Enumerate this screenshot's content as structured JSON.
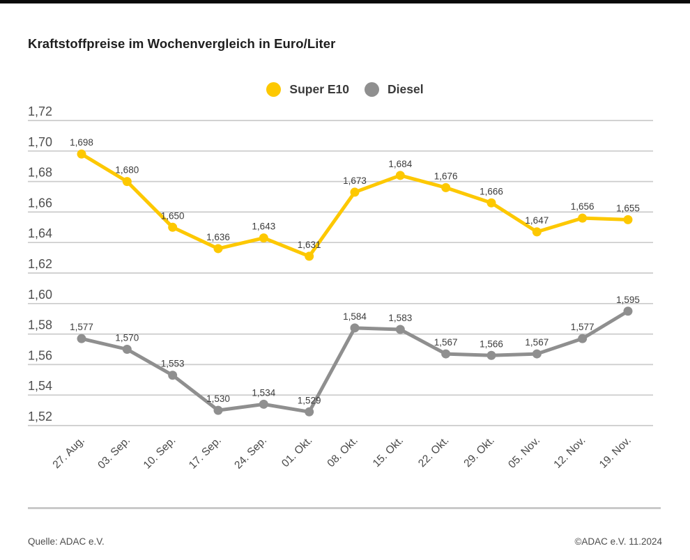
{
  "title": "Kraftstoffpreise im Wochenvergleich in Euro/Liter",
  "legend": [
    {
      "label": "Super E10",
      "color": "#FDC800"
    },
    {
      "label": "Diesel",
      "color": "#8F8F8F"
    }
  ],
  "chart_data": {
    "type": "line",
    "title": "Kraftstoffpreise im Wochenvergleich in Euro/Liter",
    "xlabel": "",
    "ylabel": "",
    "categories": [
      "27. Aug.",
      "03. Sep.",
      "10. Sep.",
      "17. Sep.",
      "24. Sep.",
      "01. Okt.",
      "08. Okt.",
      "15. Okt.",
      "22. Okt.",
      "29. Okt.",
      "05. Nov.",
      "12. Nov.",
      "19. Nov."
    ],
    "series": [
      {
        "name": "Super E10",
        "color": "#FDC800",
        "values": [
          1.698,
          1.68,
          1.65,
          1.636,
          1.643,
          1.631,
          1.673,
          1.684,
          1.676,
          1.666,
          1.647,
          1.656,
          1.655
        ],
        "labels": [
          "1,698",
          "1,680",
          "1,650",
          "1,636",
          "1,643",
          "1,631",
          "1,673",
          "1,684",
          "1,676",
          "1,666",
          "1,647",
          "1,656",
          "1,655"
        ]
      },
      {
        "name": "Diesel",
        "color": "#8F8F8F",
        "values": [
          1.577,
          1.57,
          1.553,
          1.53,
          1.534,
          1.529,
          1.584,
          1.583,
          1.567,
          1.566,
          1.567,
          1.577,
          1.595
        ],
        "labels": [
          "1,577",
          "1,570",
          "1,553",
          "1,530",
          "1,534",
          "1,529",
          "1,584",
          "1,583",
          "1,567",
          "1,566",
          "1,567",
          "1,577",
          "1,595"
        ]
      }
    ],
    "y_ticks": [
      "1,72",
      "1,70",
      "1,68",
      "1,66",
      "1,64",
      "1,62",
      "1,60",
      "1,58",
      "1,56",
      "1,54",
      "1,52"
    ],
    "y_range": [
      1.52,
      1.72
    ],
    "grid": true,
    "legend_position": "top-center",
    "colors": {
      "grid": "#cbcbcb"
    }
  },
  "footer": {
    "source": "Quelle: ADAC e.V.",
    "copyright": "©ADAC e.V. 11.2024"
  }
}
